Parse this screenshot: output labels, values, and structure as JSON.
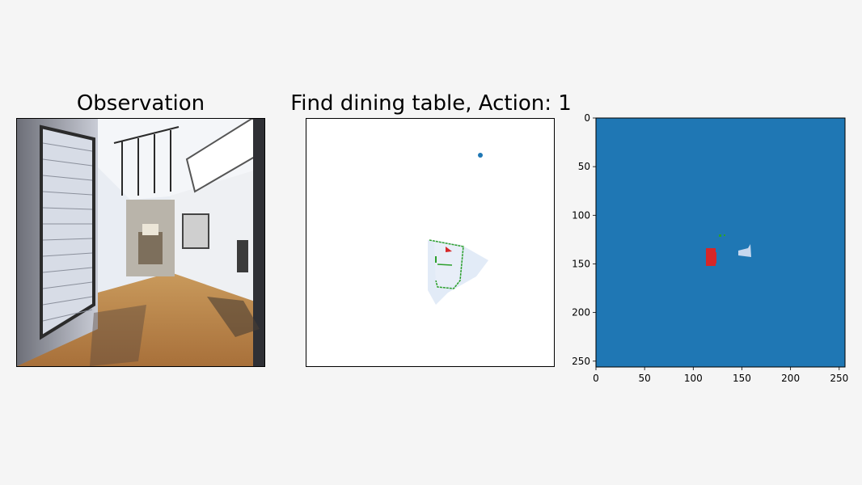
{
  "figure": {
    "observation_title": "Observation",
    "map_title": "Find dining table, Action: 1"
  },
  "colors": {
    "background": "#f5f5f5",
    "semantic_background": "#1f77b4",
    "agent": "#d62728",
    "explored_border": "#2ca02c",
    "free_space": "#dbe6f5",
    "goal": "#1f77b4"
  },
  "chart_data": {
    "type": "heatmap",
    "xlim": [
      0,
      256
    ],
    "ylim": [
      256,
      0
    ],
    "x_ticks": [
      "0",
      "50",
      "100",
      "150",
      "200",
      "250"
    ],
    "y_ticks": [
      "0",
      "50",
      "100",
      "150",
      "200",
      "250"
    ],
    "grid": false
  }
}
